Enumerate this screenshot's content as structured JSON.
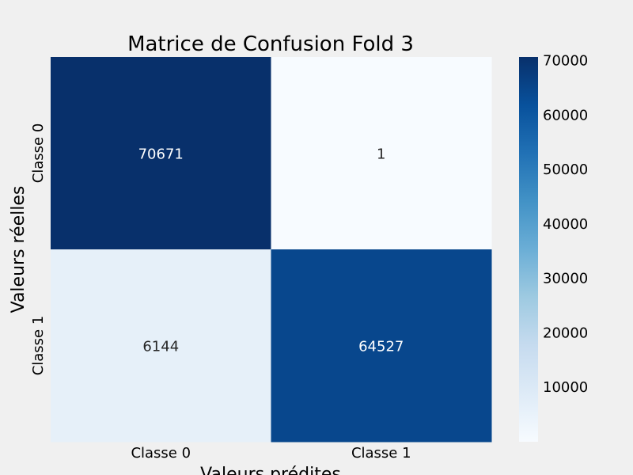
{
  "chart_data": {
    "type": "heatmap",
    "title": "Matrice de Confusion Fold 3",
    "xlabel": "Valeurs prédites",
    "ylabel": "Valeurs réelles",
    "x_categories": [
      "Classe 0",
      "Classe 1"
    ],
    "y_categories": [
      "Classe 0",
      "Classe 1"
    ],
    "values": [
      [
        70671,
        1
      ],
      [
        6144,
        64527
      ]
    ],
    "colorscale": "Blues",
    "colorbar": {
      "range": [
        1,
        70671
      ],
      "ticks": [
        10000,
        20000,
        30000,
        40000,
        50000,
        60000,
        70000
      ]
    },
    "colors": {
      "background": "#f0f0f0",
      "low": "#f7fbff",
      "high": "#08306b",
      "dark_text": "#262626",
      "light_text": "#ffffff"
    }
  }
}
